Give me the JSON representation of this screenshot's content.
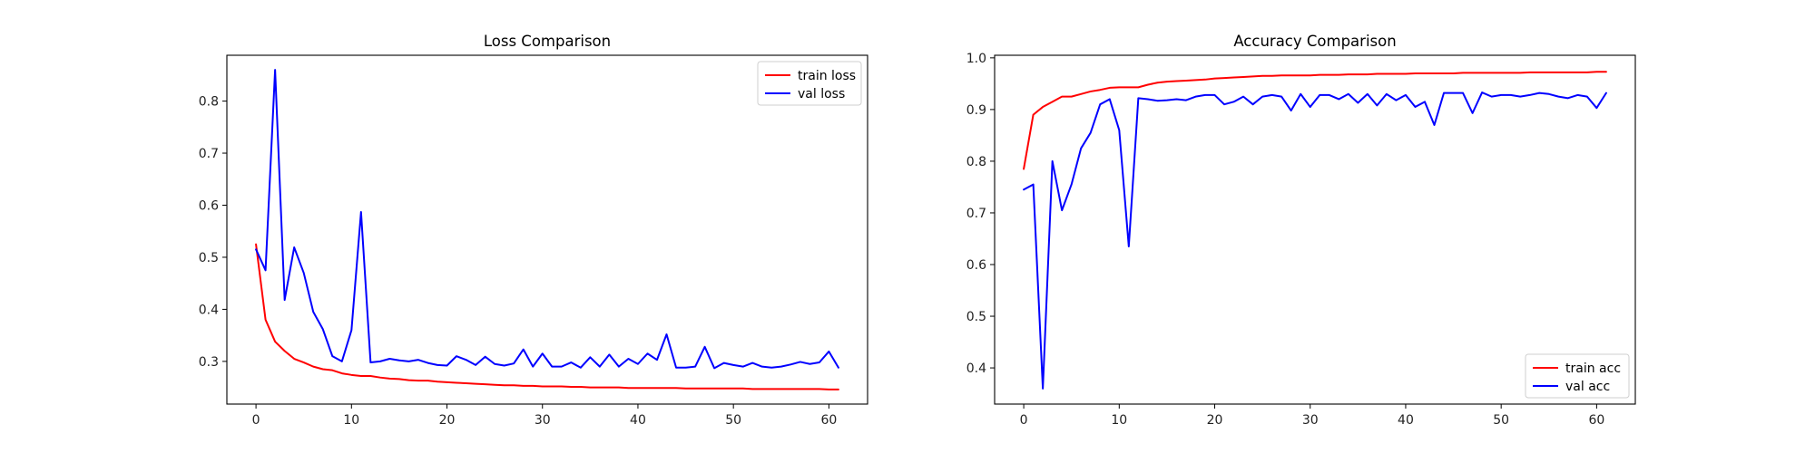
{
  "chart_data": [
    {
      "type": "line",
      "title": "Loss Comparison",
      "xlabel": "",
      "ylabel": "",
      "xlim": [
        -3.05,
        64.05
      ],
      "ylim": [
        0.218,
        0.888
      ],
      "xticks": [
        0,
        10,
        20,
        30,
        40,
        50,
        60
      ],
      "yticks": [
        0.3,
        0.4,
        0.5,
        0.6,
        0.7,
        0.8
      ],
      "grid": false,
      "legend_position": "top-right",
      "x": [
        0,
        1,
        2,
        3,
        4,
        5,
        6,
        7,
        8,
        9,
        10,
        11,
        12,
        13,
        14,
        15,
        16,
        17,
        18,
        19,
        20,
        21,
        22,
        23,
        24,
        25,
        26,
        27,
        28,
        29,
        30,
        31,
        32,
        33,
        34,
        35,
        36,
        37,
        38,
        39,
        40,
        41,
        42,
        43,
        44,
        45,
        46,
        47,
        48,
        49,
        50,
        51,
        52,
        53,
        54,
        55,
        56,
        57,
        58,
        59,
        60,
        61
      ],
      "series": [
        {
          "name": "train loss",
          "color": "#ff0000",
          "values": [
            0.525,
            0.38,
            0.338,
            0.32,
            0.305,
            0.298,
            0.29,
            0.285,
            0.283,
            0.277,
            0.274,
            0.272,
            0.272,
            0.269,
            0.267,
            0.266,
            0.264,
            0.263,
            0.263,
            0.261,
            0.26,
            0.259,
            0.258,
            0.257,
            0.256,
            0.255,
            0.254,
            0.254,
            0.253,
            0.253,
            0.252,
            0.252,
            0.252,
            0.251,
            0.251,
            0.25,
            0.25,
            0.25,
            0.25,
            0.249,
            0.249,
            0.249,
            0.249,
            0.249,
            0.249,
            0.248,
            0.248,
            0.248,
            0.248,
            0.248,
            0.248,
            0.248,
            0.247,
            0.247,
            0.247,
            0.247,
            0.247,
            0.247,
            0.247,
            0.247,
            0.246,
            0.246
          ]
        },
        {
          "name": "val loss",
          "color": "#0000ff",
          "values": [
            0.515,
            0.475,
            0.86,
            0.418,
            0.519,
            0.47,
            0.395,
            0.362,
            0.31,
            0.3,
            0.36,
            0.587,
            0.298,
            0.3,
            0.305,
            0.302,
            0.3,
            0.303,
            0.297,
            0.293,
            0.292,
            0.31,
            0.303,
            0.293,
            0.309,
            0.295,
            0.292,
            0.296,
            0.323,
            0.29,
            0.315,
            0.29,
            0.29,
            0.298,
            0.288,
            0.308,
            0.29,
            0.313,
            0.29,
            0.305,
            0.295,
            0.315,
            0.303,
            0.352,
            0.288,
            0.288,
            0.29,
            0.328,
            0.287,
            0.297,
            0.293,
            0.29,
            0.297,
            0.29,
            0.288,
            0.29,
            0.294,
            0.299,
            0.295,
            0.298,
            0.319,
            0.288
          ]
        }
      ]
    },
    {
      "type": "line",
      "title": "Accuracy Comparison",
      "xlabel": "",
      "ylabel": "",
      "xlim": [
        -3.05,
        64.05
      ],
      "ylim": [
        0.33,
        1.005
      ],
      "xticks": [
        0,
        10,
        20,
        30,
        40,
        50,
        60
      ],
      "yticks": [
        0.4,
        0.5,
        0.6,
        0.7,
        0.8,
        0.9,
        1.0
      ],
      "grid": false,
      "legend_position": "bottom-right",
      "x": [
        0,
        1,
        2,
        3,
        4,
        5,
        6,
        7,
        8,
        9,
        10,
        11,
        12,
        13,
        14,
        15,
        16,
        17,
        18,
        19,
        20,
        21,
        22,
        23,
        24,
        25,
        26,
        27,
        28,
        29,
        30,
        31,
        32,
        33,
        34,
        35,
        36,
        37,
        38,
        39,
        40,
        41,
        42,
        43,
        44,
        45,
        46,
        47,
        48,
        49,
        50,
        51,
        52,
        53,
        54,
        55,
        56,
        57,
        58,
        59,
        60,
        61
      ],
      "series": [
        {
          "name": "train acc",
          "color": "#ff0000",
          "values": [
            0.785,
            0.89,
            0.905,
            0.915,
            0.925,
            0.925,
            0.93,
            0.935,
            0.938,
            0.942,
            0.943,
            0.943,
            0.943,
            0.948,
            0.952,
            0.954,
            0.955,
            0.956,
            0.957,
            0.958,
            0.96,
            0.961,
            0.962,
            0.963,
            0.964,
            0.965,
            0.965,
            0.966,
            0.966,
            0.966,
            0.966,
            0.967,
            0.967,
            0.967,
            0.968,
            0.968,
            0.968,
            0.969,
            0.969,
            0.969,
            0.969,
            0.97,
            0.97,
            0.97,
            0.97,
            0.97,
            0.971,
            0.971,
            0.971,
            0.971,
            0.971,
            0.971,
            0.971,
            0.972,
            0.972,
            0.972,
            0.972,
            0.972,
            0.972,
            0.972,
            0.973,
            0.973
          ]
        },
        {
          "name": "val acc",
          "color": "#0000ff",
          "values": [
            0.745,
            0.755,
            0.36,
            0.8,
            0.705,
            0.755,
            0.825,
            0.855,
            0.91,
            0.92,
            0.86,
            0.635,
            0.922,
            0.92,
            0.917,
            0.918,
            0.92,
            0.918,
            0.925,
            0.928,
            0.928,
            0.91,
            0.915,
            0.925,
            0.91,
            0.925,
            0.928,
            0.925,
            0.898,
            0.93,
            0.905,
            0.928,
            0.928,
            0.92,
            0.93,
            0.913,
            0.93,
            0.908,
            0.93,
            0.918,
            0.928,
            0.905,
            0.915,
            0.87,
            0.932,
            0.932,
            0.932,
            0.893,
            0.933,
            0.925,
            0.928,
            0.928,
            0.925,
            0.928,
            0.932,
            0.93,
            0.925,
            0.922,
            0.928,
            0.925,
            0.903,
            0.932
          ]
        }
      ]
    }
  ]
}
